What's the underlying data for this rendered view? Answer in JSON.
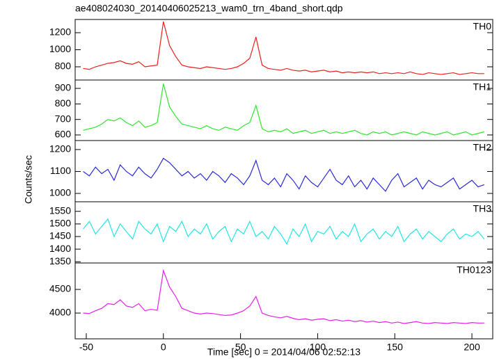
{
  "chart_data": [
    {
      "type": "line",
      "title": "ae408024030_20140406025213_wam0_trn_4band_short.qdp",
      "ylabel": "Counts/sec",
      "x": [
        -52,
        -48,
        -44,
        -40,
        -36,
        -32,
        -28,
        -24,
        -20,
        -16,
        -12,
        -8,
        -4,
        0,
        4,
        8,
        12,
        16,
        20,
        24,
        28,
        32,
        36,
        40,
        44,
        48,
        52,
        56,
        60,
        64,
        68,
        72,
        76,
        80,
        84,
        88,
        92,
        96,
        100,
        104,
        108,
        112,
        116,
        120,
        124,
        128,
        132,
        136,
        140,
        144,
        148,
        152,
        156,
        160,
        164,
        168,
        172,
        176,
        180,
        184,
        188,
        192,
        196,
        200,
        204,
        208
      ],
      "series": [
        {
          "name": "TH0",
          "color": "#e8201c",
          "values": [
            780,
            770,
            800,
            820,
            840,
            850,
            870,
            840,
            830,
            860,
            800,
            810,
            820,
            1330,
            1050,
            920,
            820,
            800,
            790,
            780,
            800,
            790,
            780,
            770,
            780,
            800,
            840,
            900,
            1150,
            820,
            780,
            770,
            760,
            780,
            760,
            750,
            760,
            740,
            750,
            760,
            740,
            750,
            730,
            740,
            730,
            740,
            730,
            740,
            720,
            730,
            720,
            730,
            720,
            740,
            720,
            710,
            730,
            720,
            710,
            720,
            730,
            710,
            720,
            730,
            720,
            720
          ]
        }
      ],
      "xlim": [
        -57.2,
        213.5
      ],
      "ylim": [
        645,
        1355
      ],
      "yticks": [
        800,
        1000,
        1200
      ]
    },
    {
      "type": "line",
      "x": [
        -52,
        -48,
        -44,
        -40,
        -36,
        -32,
        -28,
        -24,
        -20,
        -16,
        -12,
        -8,
        -4,
        0,
        4,
        8,
        12,
        16,
        20,
        24,
        28,
        32,
        36,
        40,
        44,
        48,
        52,
        56,
        60,
        64,
        68,
        72,
        76,
        80,
        84,
        88,
        92,
        96,
        100,
        104,
        108,
        112,
        116,
        120,
        124,
        128,
        132,
        136,
        140,
        144,
        148,
        152,
        156,
        160,
        164,
        168,
        172,
        176,
        180,
        184,
        188,
        192,
        196,
        200,
        204,
        208
      ],
      "series": [
        {
          "name": "TH1",
          "color": "#2ee62e",
          "values": [
            630,
            640,
            650,
            670,
            700,
            690,
            710,
            680,
            660,
            690,
            650,
            660,
            680,
            930,
            780,
            720,
            670,
            660,
            650,
            640,
            660,
            640,
            630,
            650,
            640,
            630,
            660,
            680,
            790,
            640,
            620,
            630,
            620,
            640,
            610,
            620,
            630,
            610,
            620,
            630,
            610,
            620,
            610,
            620,
            630,
            610,
            600,
            620,
            610,
            620,
            600,
            610,
            620,
            610,
            600,
            620,
            610,
            600,
            610,
            620,
            600,
            610,
            620,
            600,
            610,
            620
          ]
        }
      ],
      "xlim": [
        -57.2,
        213.5
      ],
      "ylim": [
        564,
        954
      ],
      "yticks": [
        600,
        700,
        800,
        900
      ]
    },
    {
      "type": "line",
      "x": [
        -52,
        -48,
        -44,
        -40,
        -36,
        -32,
        -28,
        -24,
        -20,
        -16,
        -12,
        -8,
        -4,
        0,
        4,
        8,
        12,
        16,
        20,
        24,
        28,
        32,
        36,
        40,
        44,
        48,
        52,
        56,
        60,
        64,
        68,
        72,
        76,
        80,
        84,
        88,
        92,
        96,
        100,
        104,
        108,
        112,
        116,
        120,
        124,
        128,
        132,
        136,
        140,
        144,
        148,
        152,
        156,
        160,
        164,
        168,
        172,
        176,
        180,
        184,
        188,
        192,
        196,
        200,
        204,
        208
      ],
      "series": [
        {
          "name": "TH2",
          "color": "#2a2ad8",
          "values": [
            1100,
            1080,
            1120,
            1090,
            1110,
            1060,
            1130,
            1100,
            1080,
            1120,
            1090,
            1070,
            1110,
            1160,
            1140,
            1110,
            1080,
            1100,
            1070,
            1090,
            1060,
            1100,
            1080,
            1050,
            1090,
            1070,
            1040,
            1080,
            1150,
            1060,
            1040,
            1070,
            1030,
            1090,
            1060,
            1020,
            1080,
            1050,
            1030,
            1070,
            1110,
            1060,
            1040,
            1080,
            1030,
            1060,
            1020,
            1070,
            1040,
            1010,
            1060,
            1090,
            1030,
            1050,
            1070,
            1020,
            1060,
            1040,
            1030,
            1050,
            1070,
            1020,
            1040,
            1060,
            1030,
            1040
          ]
        }
      ],
      "xlim": [
        -57.2,
        213.5
      ],
      "ylim": [
        962,
        1241
      ],
      "yticks": [
        1000,
        1100,
        1200
      ]
    },
    {
      "type": "line",
      "x": [
        -52,
        -48,
        -44,
        -40,
        -36,
        -32,
        -28,
        -24,
        -20,
        -16,
        -12,
        -8,
        -4,
        0,
        4,
        8,
        12,
        16,
        20,
        24,
        28,
        32,
        36,
        40,
        44,
        48,
        52,
        56,
        60,
        64,
        68,
        72,
        76,
        80,
        84,
        88,
        92,
        96,
        100,
        104,
        108,
        112,
        116,
        120,
        124,
        128,
        132,
        136,
        140,
        144,
        148,
        152,
        156,
        160,
        164,
        168,
        172,
        176,
        180,
        184,
        188,
        192,
        196,
        200,
        204,
        208
      ],
      "series": [
        {
          "name": "TH3",
          "color": "#20e6e6",
          "values": [
            1480,
            1510,
            1460,
            1490,
            1520,
            1450,
            1500,
            1470,
            1440,
            1510,
            1480,
            1460,
            1500,
            1430,
            1490,
            1470,
            1510,
            1450,
            1480,
            1460,
            1500,
            1440,
            1470,
            1490,
            1430,
            1480,
            1460,
            1510,
            1450,
            1470,
            1440,
            1490,
            1460,
            1420,
            1480,
            1450,
            1500,
            1430,
            1470,
            1460,
            1490,
            1440,
            1470,
            1450,
            1500,
            1430,
            1460,
            1480,
            1440,
            1470,
            1450,
            1490,
            1430,
            1460,
            1480,
            1440,
            1470,
            1450,
            1430,
            1460,
            1480,
            1440,
            1460,
            1450,
            1470,
            1440
          ]
        }
      ],
      "xlim": [
        -57.2,
        213.5
      ],
      "ylim": [
        1345,
        1588
      ],
      "yticks": [
        1350,
        1400,
        1450,
        1500,
        1550
      ]
    },
    {
      "type": "line",
      "xlabel": "Time [sec] 0 = 2014/04/06 02:52:13",
      "x": [
        -52,
        -48,
        -44,
        -40,
        -36,
        -32,
        -28,
        -24,
        -20,
        -16,
        -12,
        -8,
        -4,
        0,
        4,
        8,
        12,
        16,
        20,
        24,
        28,
        32,
        36,
        40,
        44,
        48,
        52,
        56,
        60,
        64,
        68,
        72,
        76,
        80,
        84,
        88,
        92,
        96,
        100,
        104,
        108,
        112,
        116,
        120,
        124,
        128,
        132,
        136,
        140,
        144,
        148,
        152,
        156,
        160,
        164,
        168,
        172,
        176,
        180,
        184,
        188,
        192,
        196,
        200,
        204,
        208
      ],
      "series": [
        {
          "name": "TH0123",
          "color": "#e620e6",
          "values": [
            4000,
            3990,
            4050,
            4100,
            4200,
            4180,
            4280,
            4150,
            4120,
            4200,
            4050,
            4080,
            4060,
            4900,
            4550,
            4350,
            4100,
            4050,
            4000,
            3980,
            4000,
            3990,
            3970,
            3950,
            3960,
            4000,
            4050,
            4150,
            4350,
            4000,
            3950,
            3920,
            3900,
            3930,
            3890,
            3860,
            3880,
            3850,
            3870,
            3880,
            3840,
            3860,
            3830,
            3850,
            3820,
            3840,
            3810,
            3830,
            3800,
            3820,
            3790,
            3810,
            3780,
            3800,
            3820,
            3790,
            3780,
            3800,
            3790,
            3780,
            3800,
            3790,
            3780,
            3800,
            3790,
            3790
          ]
        }
      ],
      "xlim": [
        -57.2,
        213.5
      ],
      "ylim": [
        3456,
        5059
      ],
      "yticks": [
        4000,
        4500
      ],
      "xticks": [
        -50,
        0,
        50,
        100,
        150,
        200
      ]
    }
  ]
}
